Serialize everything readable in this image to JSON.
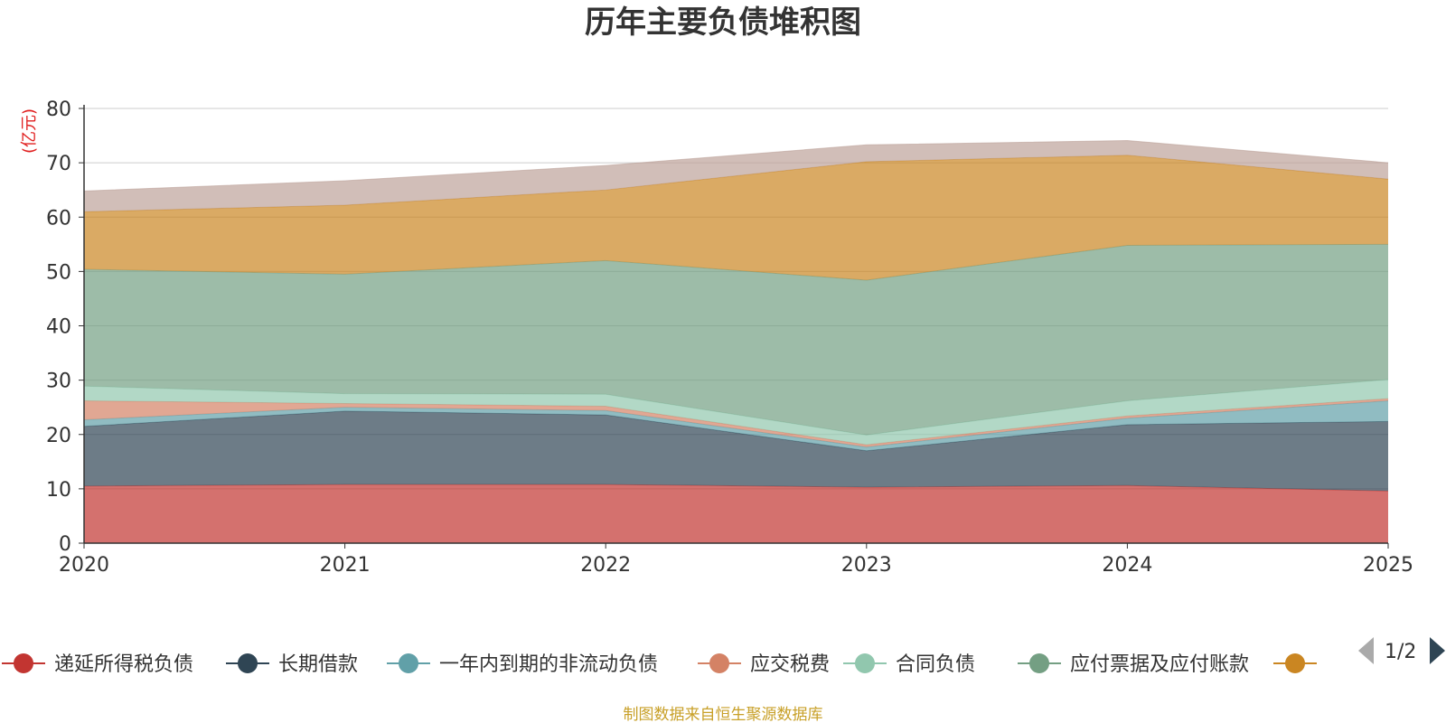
{
  "chart_data": {
    "type": "area",
    "stacked": true,
    "title": "历年主要负债堆积图",
    "unit": "(亿元)",
    "x": [
      "2020",
      "2021",
      "2022",
      "2023",
      "2024",
      "2025"
    ],
    "yticks": [
      "0",
      "10",
      "20",
      "30",
      "40",
      "50",
      "60",
      "70",
      "80"
    ],
    "ylim": [
      0,
      80
    ],
    "grid": true,
    "series": [
      {
        "name": "递延所得税负债",
        "color": "#c23531",
        "values": [
          10.5,
          10.8,
          10.8,
          10.3,
          10.6,
          9.6
        ]
      },
      {
        "name": "长期借款",
        "color": "#2f4554",
        "values": [
          11.0,
          13.5,
          12.8,
          6.7,
          11.2,
          12.8
        ]
      },
      {
        "name": "一年内到期的非流动负债",
        "color": "#61a0a8",
        "values": [
          1.2,
          0.7,
          0.8,
          0.7,
          1.2,
          3.8
        ]
      },
      {
        "name": "应交税费",
        "color": "#d48265",
        "values": [
          3.5,
          0.7,
          0.8,
          0.4,
          0.4,
          0.4
        ]
      },
      {
        "name": "合同负债",
        "color": "#91c7ae",
        "values": [
          2.7,
          1.8,
          2.2,
          1.8,
          2.8,
          3.5
        ]
      },
      {
        "name": "应付票据及应付账款",
        "color": "#749f83",
        "values": [
          21.5,
          22.0,
          24.6,
          28.5,
          28.6,
          24.9
        ]
      },
      {
        "name": "",
        "color": "#ca8622",
        "values": [
          10.6,
          12.7,
          13.0,
          21.8,
          16.6,
          12.0
        ]
      },
      {
        "name": "",
        "color": "#bda29a",
        "values": [
          3.8,
          4.5,
          4.5,
          3.1,
          2.7,
          3.0
        ]
      }
    ],
    "legend_page": "1/2"
  },
  "source": "制图数据来自恒生聚源数据库"
}
